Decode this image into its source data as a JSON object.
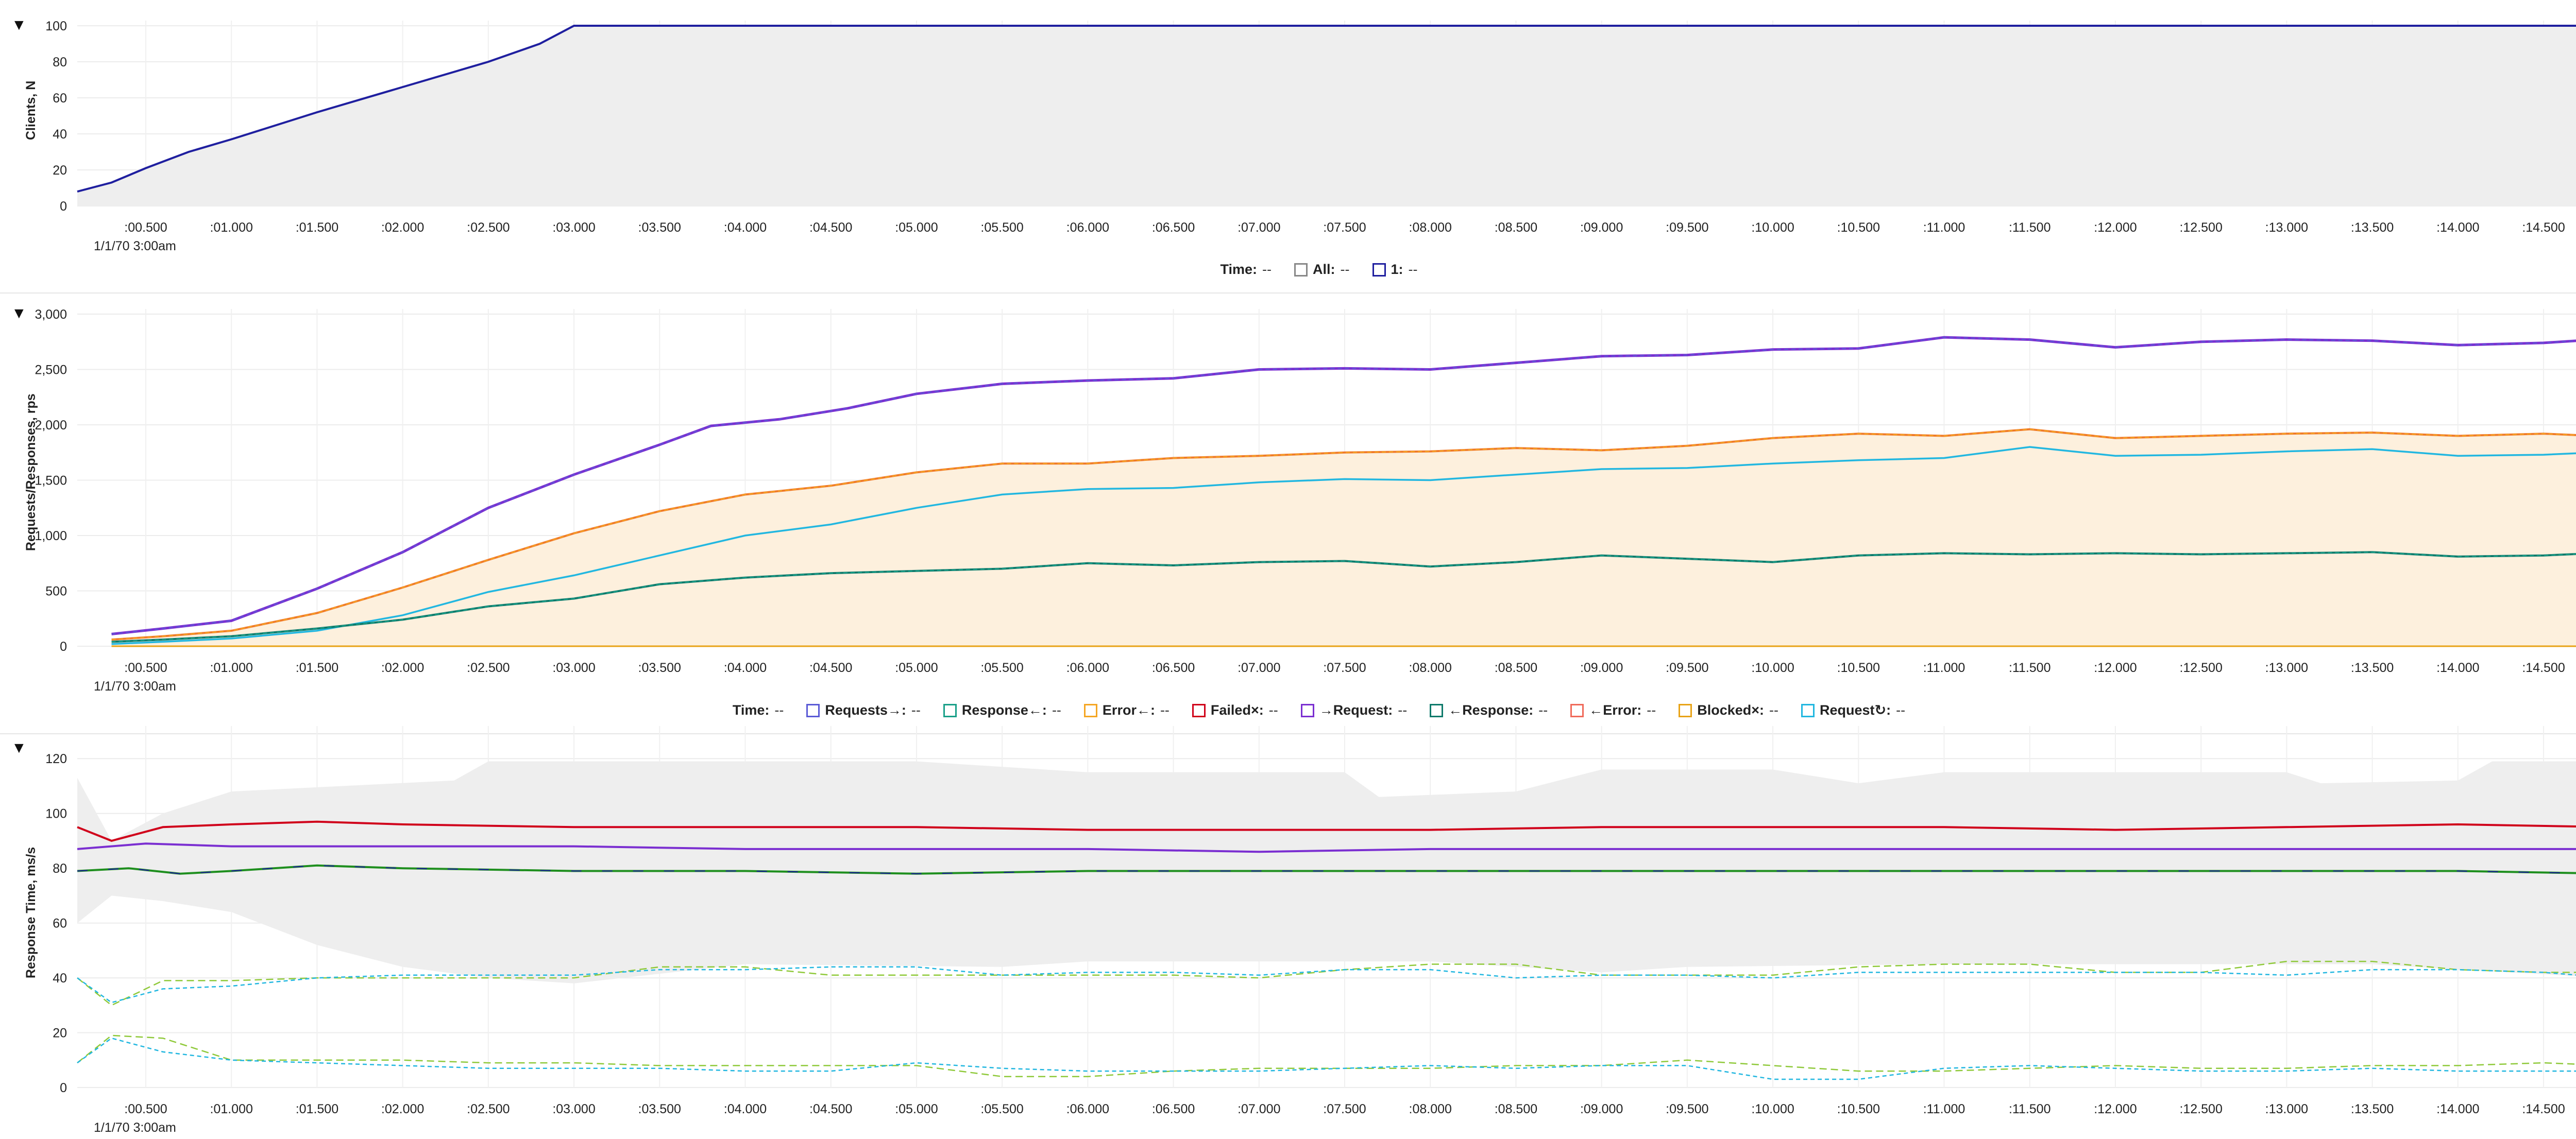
{
  "colors": {
    "clients": "#1f1f9f",
    "requests_out": "#5b5bd6",
    "response_in": "#1aa089",
    "error_in": "#f5a623",
    "failed": "#d0021b",
    "request_arrow": "#7b2fd1",
    "response_arrow": "#0e7a6b",
    "error_arrow": "#f06a5a",
    "blocked": "#e8a317",
    "request_retry": "#22b7e0",
    "orange_line": "#f07a2a",
    "band_grey": "#eeeeee",
    "band_orange": "#fdf0dd",
    "green_line": "#1f8f1f",
    "olive_line": "#8fc93a"
  },
  "x_ticks": [
    ":00.500",
    ":01.000",
    ":01.500",
    ":02.000",
    ":02.500",
    ":03.000",
    ":03.500",
    ":04.000",
    ":04.500",
    ":05.000",
    ":05.500",
    ":06.000",
    ":06.500",
    ":07.000",
    ":07.500",
    ":08.000",
    ":08.500",
    ":09.000",
    ":09.500",
    ":10.000",
    ":10.500",
    ":11.000",
    ":11.500",
    ":12.000",
    ":12.500",
    ":13.000",
    ":13.500",
    ":14.000",
    ":14.500"
  ],
  "date_label": "1/1/70 3:00am",
  "panel1": {
    "toggle": "▼",
    "legend": [
      {
        "label": "Time:",
        "value": "--",
        "swatch": null
      },
      {
        "label": "All:",
        "value": "--",
        "swatch": "#888888"
      },
      {
        "label": "1:",
        "value": "--",
        "swatch": "#1f1f9f"
      }
    ]
  },
  "panel2": {
    "toggle": "▼",
    "legend": [
      {
        "label": "Time:",
        "value": "--",
        "swatch": null
      },
      {
        "label": "Requests→:",
        "value": "--",
        "swatch": "#5b5bd6"
      },
      {
        "label": "Response←:",
        "value": "--",
        "swatch": "#1aa089"
      },
      {
        "label": "Error←:",
        "value": "--",
        "swatch": "#f5a623"
      },
      {
        "label": "Failed×:",
        "value": "--",
        "swatch": "#d0021b"
      },
      {
        "label": "→Request:",
        "value": "--",
        "swatch": "#7b2fd1"
      },
      {
        "label": "←Response:",
        "value": "--",
        "swatch": "#0e7a6b"
      },
      {
        "label": "←Error:",
        "value": "--",
        "swatch": "#f06a5a"
      },
      {
        "label": "Blocked×:",
        "value": "--",
        "swatch": "#e8a317"
      },
      {
        "label": "Request↻:",
        "value": "--",
        "swatch": "#22b7e0"
      }
    ]
  },
  "panel3": {
    "toggle": "▼"
  },
  "chart_data": [
    {
      "type": "area",
      "ylabel": "Clients, N",
      "ylim": [
        0,
        100
      ],
      "y_ticks": [
        0,
        20,
        40,
        60,
        80,
        100
      ],
      "xlim": [
        0.1,
        14.9
      ],
      "grid": true,
      "series": [
        {
          "x": [
            0.1,
            0.3,
            0.5,
            0.75,
            1.0,
            1.5,
            2.0,
            2.5,
            2.8,
            3.0,
            14.9
          ],
          "values": [
            8,
            13,
            21,
            30,
            37,
            52,
            66,
            80,
            90,
            100,
            100
          ]
        }
      ]
    },
    {
      "type": "line",
      "ylabel": "Requests/Responses, rps",
      "ylim": [
        0,
        3000
      ],
      "y_ticks": [
        "0",
        "500",
        "1,000",
        "1,500",
        "2,000",
        "2,500",
        "3,000"
      ],
      "xlim": [
        0.1,
        14.9
      ],
      "grid": true,
      "series": [
        {
          "x": [
            0.3,
            0.6,
            1.0,
            1.5,
            2.0,
            2.5,
            3.0,
            3.5,
            3.8,
            4.2,
            4.6,
            5.0,
            5.5,
            6.0,
            6.5,
            7.0,
            7.5,
            8.0,
            8.5,
            9.0,
            9.5,
            10.0,
            10.5,
            11.0,
            11.5,
            12.0,
            12.5,
            13.0,
            13.5,
            14.0,
            14.5,
            14.8
          ],
          "values": [
            110,
            160,
            230,
            520,
            850,
            1250,
            1550,
            1820,
            1990,
            2050,
            2150,
            2280,
            2370,
            2400,
            2420,
            2500,
            2510,
            2500,
            2560,
            2620,
            2630,
            2680,
            2690,
            2790,
            2770,
            2700,
            2750,
            2770,
            2760,
            2720,
            2740,
            2770
          ]
        },
        {
          "x": [
            0.3,
            0.6,
            1.0,
            1.5,
            2.0,
            2.5,
            3.0,
            3.5,
            4.0,
            4.5,
            5.0,
            5.5,
            6.0,
            6.5,
            7.0,
            7.5,
            8.0,
            8.5,
            9.0,
            9.5,
            10.0,
            10.5,
            11.0,
            11.5,
            12.0,
            12.5,
            13.0,
            13.5,
            14.0,
            14.5,
            14.8
          ],
          "values": [
            60,
            90,
            140,
            300,
            530,
            780,
            1020,
            1220,
            1370,
            1450,
            1570,
            1650,
            1650,
            1700,
            1720,
            1750,
            1760,
            1790,
            1770,
            1810,
            1880,
            1920,
            1900,
            1960,
            1880,
            1900,
            1920,
            1930,
            1900,
            1920,
            1900
          ]
        },
        {
          "x": [
            0.3,
            0.6,
            1.0,
            1.5,
            2.0,
            2.5,
            3.0,
            3.5,
            4.0,
            4.5,
            5.0,
            5.5,
            6.0,
            6.5,
            7.0,
            7.5,
            8.0,
            8.5,
            9.0,
            9.5,
            10.0,
            10.5,
            11.0,
            11.5,
            12.0,
            12.5,
            13.0,
            13.5,
            14.0,
            14.5,
            14.8
          ],
          "values": [
            20,
            40,
            70,
            140,
            280,
            490,
            640,
            820,
            1000,
            1100,
            1250,
            1370,
            1420,
            1430,
            1480,
            1510,
            1500,
            1550,
            1600,
            1610,
            1650,
            1680,
            1700,
            1800,
            1720,
            1730,
            1760,
            1780,
            1720,
            1730,
            1750
          ]
        },
        {
          "x": [
            0.3,
            0.6,
            1.0,
            1.5,
            2.0,
            2.5,
            3.0,
            3.5,
            4.0,
            4.5,
            5.0,
            5.5,
            6.0,
            6.5,
            7.0,
            7.5,
            8.0,
            8.5,
            9.0,
            9.5,
            10.0,
            10.5,
            11.0,
            11.5,
            12.0,
            12.5,
            13.0,
            13.5,
            14.0,
            14.5,
            14.8
          ],
          "values": [
            40,
            60,
            90,
            160,
            240,
            360,
            430,
            560,
            620,
            660,
            680,
            700,
            750,
            730,
            760,
            770,
            720,
            760,
            820,
            790,
            760,
            820,
            840,
            830,
            840,
            830,
            840,
            850,
            810,
            820,
            840
          ]
        },
        {
          "x": [
            0.3,
            14.8
          ],
          "values": [
            0,
            0
          ]
        }
      ]
    },
    {
      "type": "line",
      "ylabel": "Response Time, ms/s",
      "ylim": [
        0,
        130
      ],
      "y_ticks": [
        0,
        20,
        40,
        60,
        80,
        100,
        120
      ],
      "xlim": [
        0.1,
        14.9
      ],
      "grid": true,
      "series": [
        {
          "x": [
            0.1,
            0.3,
            0.6,
            1.0,
            1.5,
            2.0,
            3.0,
            4.0,
            5.0,
            6.0,
            7.0,
            8.0,
            9.0,
            10.0,
            11.0,
            12.0,
            13.0,
            14.0,
            14.9
          ],
          "values": [
            95,
            90,
            95,
            96,
            97,
            96,
            95,
            95,
            95,
            94,
            94,
            94,
            95,
            95,
            95,
            94,
            95,
            96,
            95
          ]
        },
        {
          "x": [
            0.1,
            0.5,
            1.0,
            1.5,
            2.0,
            3.0,
            4.0,
            5.0,
            6.0,
            7.0,
            8.0,
            9.0,
            10.0,
            11.0,
            12.0,
            13.0,
            14.0,
            14.9
          ],
          "values": [
            87,
            89,
            88,
            88,
            88,
            88,
            87,
            87,
            87,
            86,
            87,
            87,
            87,
            87,
            87,
            87,
            87,
            87
          ]
        },
        {
          "x": [
            0.1,
            0.4,
            0.7,
            1.0,
            1.5,
            2.0,
            3.0,
            4.0,
            5.0,
            6.0,
            7.0,
            8.0,
            9.0,
            10.0,
            11.0,
            12.0,
            13.0,
            14.0,
            14.9
          ],
          "values": [
            79,
            80,
            78,
            79,
            81,
            80,
            79,
            79,
            78,
            79,
            79,
            79,
            79,
            79,
            79,
            79,
            79,
            79,
            78
          ]
        },
        {
          "x": [
            0.1,
            0.3,
            0.6,
            1.0,
            1.5,
            2.0,
            2.5,
            3.0,
            3.5,
            4.0,
            4.5,
            5.0,
            5.5,
            6.0,
            6.5,
            7.0,
            7.5,
            8.0,
            8.5,
            9.0,
            9.5,
            10.0,
            10.5,
            11.0,
            11.5,
            12.0,
            12.5,
            13.0,
            13.5,
            14.0,
            14.5,
            14.9
          ],
          "values": [
            40,
            30,
            39,
            39,
            40,
            40,
            40,
            40,
            44,
            44,
            41,
            41,
            41,
            41,
            41,
            40,
            43,
            45,
            45,
            41,
            41,
            41,
            44,
            45,
            45,
            42,
            42,
            46,
            46,
            43,
            42,
            42
          ]
        },
        {
          "x": [
            0.1,
            0.3,
            0.6,
            1.0,
            1.5,
            2.0,
            2.5,
            3.0,
            3.5,
            4.0,
            4.5,
            5.0,
            5.5,
            6.0,
            6.5,
            7.0,
            7.5,
            8.0,
            8.5,
            9.0,
            9.5,
            10.0,
            10.5,
            11.0,
            11.5,
            12.0,
            12.5,
            13.0,
            13.5,
            14.0,
            14.5,
            14.9
          ],
          "values": [
            40,
            31,
            36,
            37,
            40,
            41,
            41,
            41,
            43,
            43,
            44,
            44,
            41,
            42,
            42,
            41,
            43,
            43,
            40,
            41,
            41,
            40,
            42,
            42,
            42,
            42,
            42,
            41,
            43,
            43,
            42,
            40
          ]
        },
        {
          "x": [
            0.1,
            0.3,
            0.6,
            1.0,
            1.5,
            2.0,
            2.5,
            3.0,
            3.5,
            4.0,
            4.5,
            5.0,
            5.5,
            6.0,
            6.5,
            7.0,
            7.5,
            8.0,
            8.5,
            9.0,
            9.5,
            10.0,
            10.5,
            11.0,
            11.5,
            12.0,
            12.5,
            13.0,
            13.5,
            14.0,
            14.5,
            14.9
          ],
          "values": [
            9,
            19,
            18,
            10,
            10,
            10,
            9,
            9,
            8,
            8,
            8,
            8,
            4,
            4,
            6,
            7,
            7,
            7,
            8,
            8,
            10,
            8,
            6,
            6,
            7,
            8,
            7,
            7,
            8,
            8,
            9,
            8
          ]
        },
        {
          "x": [
            0.1,
            0.3,
            0.6,
            1.0,
            1.5,
            2.0,
            2.5,
            3.0,
            3.5,
            4.0,
            4.5,
            5.0,
            5.5,
            6.0,
            6.5,
            7.0,
            7.5,
            8.0,
            8.5,
            9.0,
            9.5,
            10.0,
            10.5,
            11.0,
            11.5,
            12.0,
            12.5,
            13.0,
            13.5,
            14.0,
            14.5,
            14.9
          ],
          "values": [
            9,
            18,
            13,
            10,
            9,
            8,
            7,
            7,
            7,
            6,
            6,
            9,
            7,
            6,
            6,
            6,
            7,
            8,
            7,
            8,
            8,
            3,
            3,
            7,
            8,
            7,
            6,
            6,
            7,
            6,
            6,
            6
          ]
        }
      ]
    }
  ]
}
